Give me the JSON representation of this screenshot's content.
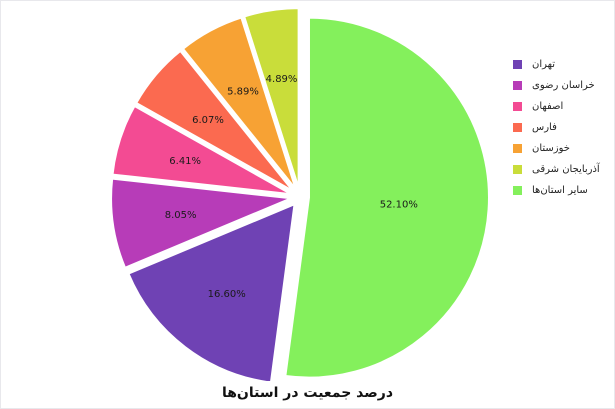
{
  "chart_data": {
    "type": "pie",
    "title": "درصد جمعیت در استان‌ها",
    "slices": [
      {
        "label": "سایر استان‌ها",
        "value": 52.1,
        "display": "52.10%",
        "color": "#84f05c"
      },
      {
        "label": "تهران",
        "value": 16.6,
        "display": "16.60%",
        "color": "#6f42b4"
      },
      {
        "label": "خراسان رضوی",
        "value": 8.05,
        "display": "8.05%",
        "color": "#b73cb8"
      },
      {
        "label": "اصفهان",
        "value": 6.41,
        "display": "6.41%",
        "color": "#f34b93"
      },
      {
        "label": "فارس",
        "value": 6.07,
        "display": "6.07%",
        "color": "#fb6a50"
      },
      {
        "label": "خوزستان",
        "value": 5.89,
        "display": "5.89%",
        "color": "#f7a234"
      },
      {
        "label": "آذربایجان شرقی",
        "value": 4.89,
        "display": "4.89%",
        "color": "#c9dd3a"
      }
    ],
    "legend": {
      "placement": "right",
      "order": [
        "تهران",
        "خراسان رضوی",
        "اصفهان",
        "فارس",
        "خوزستان",
        "آذربایجان شرقی",
        "سایر استان‌ها"
      ]
    },
    "exploded": true
  }
}
